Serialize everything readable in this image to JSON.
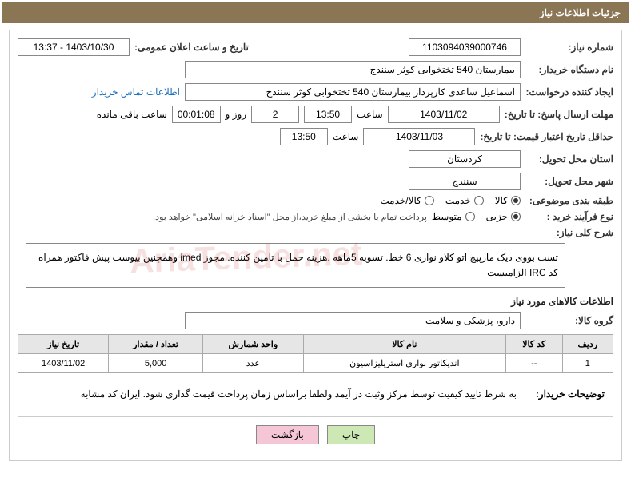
{
  "header": {
    "title": "جزئیات اطلاعات نیاز"
  },
  "fields": {
    "need_no_label": "شماره نیاز:",
    "need_no": "1103094039000746",
    "announce_label": "تاریخ و ساعت اعلان عمومی:",
    "announce_value": "1403/10/30 - 13:37",
    "buyer_org_label": "نام دستگاه خریدار:",
    "buyer_org": "بیمارستان 540 تختخوابی کوثر سنندج",
    "requester_label": "ایجاد کننده درخواست:",
    "requester": "اسماعیل ساعدی کارپرداز بیمارستان 540 تختخوابی کوثر سنندج",
    "contact_link": "اطلاعات تماس خریدار",
    "reply_deadline_label": "مهلت ارسال پاسخ: تا تاریخ:",
    "reply_date": "1403/11/02",
    "time_label": "ساعت",
    "reply_time": "13:50",
    "days": "2",
    "days_and": "روز و",
    "countdown": "00:01:08",
    "remaining": "ساعت باقی مانده",
    "min_valid_label": "حداقل تاریخ اعتبار قیمت: تا تاریخ:",
    "min_valid_date": "1403/11/03",
    "min_valid_time": "13:50",
    "province_label": "استان محل تحویل:",
    "province": "کردستان",
    "city_label": "شهر محل تحویل:",
    "city": "سنندج",
    "category_label": "طبقه بندی موضوعی:",
    "cat_goods": "کالا",
    "cat_service": "خدمت",
    "cat_both": "کالا/خدمت",
    "process_label": "نوع فرآیند خرید :",
    "proc_partial": "جزیی",
    "proc_medium": "متوسط",
    "process_note": "پرداخت تمام یا بخشی از مبلغ خرید،از محل \"اسناد خزانه اسلامی\" خواهد بود.",
    "overall_label": "شرح کلی نیاز:",
    "overall_text": "تست بووی دیک مارپیچ اتو کلاو نواری 6 خط. تسویه 5ماهه .هزینه حمل با تامین کننده. مجوز imed وهمچنین بیوست پیش فاکتور همراه کد IRC  الزامیست",
    "goods_info_title": "اطلاعات کالاهای مورد نیاز",
    "goods_group_label": "گروه کالا:",
    "goods_group": "دارو، پزشکی و سلامت",
    "buyer_note_label": "توضیحات خریدار:",
    "buyer_note": "به شرط تایید کیفیت توسط مرکز وثبت در آیمد ولطفا براساس زمان پرداخت قیمت گذاری شود. ایران کد مشابه"
  },
  "table": {
    "headers": {
      "row": "ردیف",
      "code": "کد کالا",
      "name": "نام کالا",
      "unit": "واحد شمارش",
      "qty": "تعداد / مقدار",
      "date": "تاریخ نیاز"
    },
    "rows": [
      {
        "row": "1",
        "code": "--",
        "name": "اندیکاتور نواری استریلیزاسیون",
        "unit": "عدد",
        "qty": "5,000",
        "date": "1403/11/02"
      }
    ]
  },
  "buttons": {
    "print": "چاپ",
    "back": "بازگشت"
  },
  "watermark": "AriaTender.net",
  "colors": {
    "header_bg": "#8a7654",
    "btn_green": "#cde8b5",
    "btn_pink": "#f5c6d6"
  }
}
